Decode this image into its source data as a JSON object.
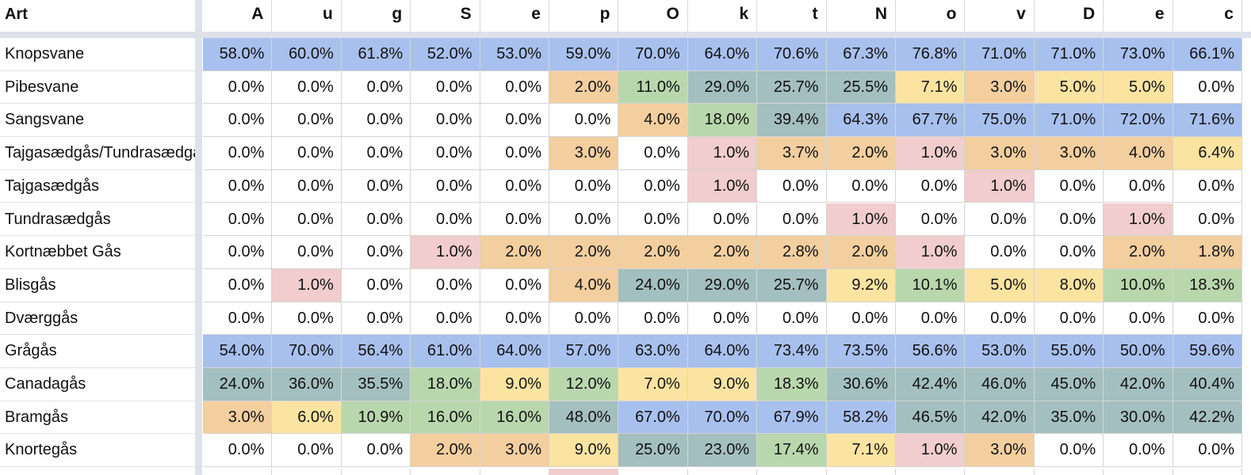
{
  "header": {
    "art_label": "Art",
    "columns": [
      "A",
      "u",
      "g",
      "S",
      "e",
      "p",
      "O",
      "k",
      "t",
      "N",
      "o",
      "v",
      "D",
      "e",
      "c"
    ]
  },
  "colors": {
    "blue": "#a8c0ee",
    "teal": "#a4bfbf",
    "green": "#b9d7ad",
    "yellow": "#fbe4a2",
    "orange": "#f3ce9f",
    "pink": "#f1cdcd",
    "white": "#ffffff"
  },
  "rows": [
    {
      "name": "Knopsvane",
      "values": [
        "58.0%",
        "60.0%",
        "61.8%",
        "52.0%",
        "53.0%",
        "59.0%",
        "70.0%",
        "64.0%",
        "70.6%",
        "67.3%",
        "76.8%",
        "71.0%",
        "71.0%",
        "73.0%",
        "66.1%"
      ],
      "colors": [
        "blue",
        "blue",
        "blue",
        "blue",
        "blue",
        "blue",
        "blue",
        "blue",
        "blue",
        "blue",
        "blue",
        "blue",
        "blue",
        "blue",
        "blue"
      ]
    },
    {
      "name": "Pibesvane",
      "values": [
        "0.0%",
        "0.0%",
        "0.0%",
        "0.0%",
        "0.0%",
        "2.0%",
        "11.0%",
        "29.0%",
        "25.7%",
        "25.5%",
        "7.1%",
        "3.0%",
        "5.0%",
        "5.0%",
        "0.0%"
      ],
      "colors": [
        "white",
        "white",
        "white",
        "white",
        "white",
        "orange",
        "green",
        "teal",
        "teal",
        "teal",
        "yellow",
        "orange",
        "yellow",
        "yellow",
        "white"
      ]
    },
    {
      "name": "Sangsvane",
      "values": [
        "0.0%",
        "0.0%",
        "0.0%",
        "0.0%",
        "0.0%",
        "0.0%",
        "4.0%",
        "18.0%",
        "39.4%",
        "64.3%",
        "67.7%",
        "75.0%",
        "71.0%",
        "72.0%",
        "71.6%"
      ],
      "colors": [
        "white",
        "white",
        "white",
        "white",
        "white",
        "white",
        "orange",
        "green",
        "teal",
        "blue",
        "blue",
        "blue",
        "blue",
        "blue",
        "blue"
      ]
    },
    {
      "name": "Tajgasædgås/Tundrasædgås",
      "values": [
        "0.0%",
        "0.0%",
        "0.0%",
        "0.0%",
        "0.0%",
        "3.0%",
        "0.0%",
        "1.0%",
        "3.7%",
        "2.0%",
        "1.0%",
        "3.0%",
        "3.0%",
        "4.0%",
        "6.4%"
      ],
      "colors": [
        "white",
        "white",
        "white",
        "white",
        "white",
        "orange",
        "white",
        "pink",
        "orange",
        "orange",
        "pink",
        "orange",
        "orange",
        "orange",
        "yellow"
      ]
    },
    {
      "name": "Tajgasædgås",
      "values": [
        "0.0%",
        "0.0%",
        "0.0%",
        "0.0%",
        "0.0%",
        "0.0%",
        "0.0%",
        "1.0%",
        "0.0%",
        "0.0%",
        "0.0%",
        "1.0%",
        "0.0%",
        "0.0%",
        "0.0%"
      ],
      "colors": [
        "white",
        "white",
        "white",
        "white",
        "white",
        "white",
        "white",
        "pink",
        "white",
        "white",
        "white",
        "pink",
        "white",
        "white",
        "white"
      ]
    },
    {
      "name": "Tundrasædgås",
      "values": [
        "0.0%",
        "0.0%",
        "0.0%",
        "0.0%",
        "0.0%",
        "0.0%",
        "0.0%",
        "0.0%",
        "0.0%",
        "1.0%",
        "0.0%",
        "0.0%",
        "0.0%",
        "1.0%",
        "0.0%"
      ],
      "colors": [
        "white",
        "white",
        "white",
        "white",
        "white",
        "white",
        "white",
        "white",
        "white",
        "pink",
        "white",
        "white",
        "white",
        "pink",
        "white"
      ]
    },
    {
      "name": "Kortnæbbet Gås",
      "values": [
        "0.0%",
        "0.0%",
        "0.0%",
        "1.0%",
        "2.0%",
        "2.0%",
        "2.0%",
        "2.0%",
        "2.8%",
        "2.0%",
        "1.0%",
        "0.0%",
        "0.0%",
        "2.0%",
        "1.8%"
      ],
      "colors": [
        "white",
        "white",
        "white",
        "pink",
        "orange",
        "orange",
        "orange",
        "orange",
        "orange",
        "orange",
        "pink",
        "white",
        "white",
        "orange",
        "orange"
      ]
    },
    {
      "name": "Blisgås",
      "values": [
        "0.0%",
        "1.0%",
        "0.0%",
        "0.0%",
        "0.0%",
        "4.0%",
        "24.0%",
        "29.0%",
        "25.7%",
        "9.2%",
        "10.1%",
        "5.0%",
        "8.0%",
        "10.0%",
        "18.3%"
      ],
      "colors": [
        "white",
        "pink",
        "white",
        "white",
        "white",
        "orange",
        "teal",
        "teal",
        "teal",
        "yellow",
        "green",
        "yellow",
        "yellow",
        "green",
        "green"
      ]
    },
    {
      "name": "Dværggås",
      "values": [
        "0.0%",
        "0.0%",
        "0.0%",
        "0.0%",
        "0.0%",
        "0.0%",
        "0.0%",
        "0.0%",
        "0.0%",
        "0.0%",
        "0.0%",
        "0.0%",
        "0.0%",
        "0.0%",
        "0.0%"
      ],
      "colors": [
        "white",
        "white",
        "white",
        "white",
        "white",
        "white",
        "white",
        "white",
        "white",
        "white",
        "white",
        "white",
        "white",
        "white",
        "white"
      ]
    },
    {
      "name": "Grågås",
      "values": [
        "54.0%",
        "70.0%",
        "56.4%",
        "61.0%",
        "64.0%",
        "57.0%",
        "63.0%",
        "64.0%",
        "73.4%",
        "73.5%",
        "56.6%",
        "53.0%",
        "55.0%",
        "50.0%",
        "59.6%"
      ],
      "colors": [
        "blue",
        "blue",
        "blue",
        "blue",
        "blue",
        "blue",
        "blue",
        "blue",
        "blue",
        "blue",
        "blue",
        "blue",
        "blue",
        "blue",
        "blue"
      ]
    },
    {
      "name": "Canadagås",
      "values": [
        "24.0%",
        "36.0%",
        "35.5%",
        "18.0%",
        "9.0%",
        "12.0%",
        "7.0%",
        "9.0%",
        "18.3%",
        "30.6%",
        "42.4%",
        "46.0%",
        "45.0%",
        "42.0%",
        "40.4%"
      ],
      "colors": [
        "teal",
        "teal",
        "teal",
        "green",
        "yellow",
        "green",
        "yellow",
        "yellow",
        "green",
        "teal",
        "teal",
        "teal",
        "teal",
        "teal",
        "teal"
      ]
    },
    {
      "name": "Bramgås",
      "values": [
        "3.0%",
        "6.0%",
        "10.9%",
        "16.0%",
        "16.0%",
        "48.0%",
        "67.0%",
        "70.0%",
        "67.9%",
        "58.2%",
        "46.5%",
        "42.0%",
        "35.0%",
        "30.0%",
        "42.2%"
      ],
      "colors": [
        "orange",
        "yellow",
        "green",
        "green",
        "green",
        "teal",
        "blue",
        "blue",
        "blue",
        "blue",
        "teal",
        "teal",
        "teal",
        "teal",
        "teal"
      ]
    },
    {
      "name": "Knortegås",
      "values": [
        "0.0%",
        "0.0%",
        "0.0%",
        "2.0%",
        "3.0%",
        "9.0%",
        "25.0%",
        "23.0%",
        "17.4%",
        "7.1%",
        "1.0%",
        "3.0%",
        "0.0%",
        "0.0%",
        "0.0%"
      ],
      "colors": [
        "white",
        "white",
        "white",
        "orange",
        "orange",
        "yellow",
        "teal",
        "teal",
        "green",
        "yellow",
        "pink",
        "orange",
        "white",
        "white",
        "white"
      ]
    }
  ],
  "partial_row_colors": [
    "white",
    "white",
    "white",
    "white",
    "white",
    "pink",
    "white",
    "white",
    "white",
    "white",
    "white",
    "white",
    "white",
    "white",
    "white"
  ]
}
